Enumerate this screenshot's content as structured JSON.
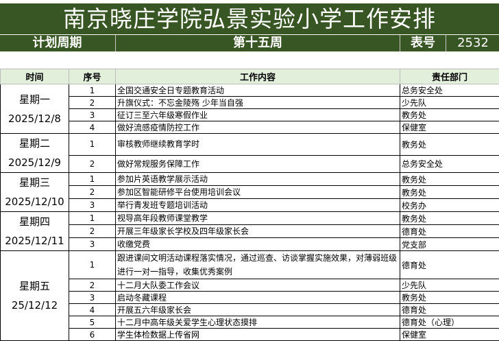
{
  "title": "南京晓庄学院弘景实验小学工作安排",
  "plan_label": "计划周期",
  "week": "第十五周",
  "form_label": "表号",
  "form_number": "2532",
  "headers": [
    "时间",
    "序号",
    "工作内容",
    "责任部门"
  ],
  "days": [
    {
      "day": "星期一",
      "date": "2025/12/8",
      "items": [
        {
          "no": "1",
          "content": "全国交通安全日专题教育活动",
          "dept": "总务安全处"
        },
        {
          "no": "2",
          "content": "升旗仪式：不忘金陵殇 少年当自强",
          "dept": "少先队"
        },
        {
          "no": "3",
          "content": "征订三至六年级寒假作业",
          "dept": "教务处"
        },
        {
          "no": "4",
          "content": "做好流感疫情防控工作",
          "dept": "保健室"
        }
      ]
    },
    {
      "day": "星期二",
      "date": "2025/12/9",
      "items": [
        {
          "no": "1",
          "content": "审核教师继续教育学时",
          "dept": "教务处"
        },
        {
          "no": "2",
          "content": "做好常规服务保障工作",
          "dept": "总务安全处"
        }
      ]
    },
    {
      "day": "星期三",
      "date": "2025/12/10",
      "items": [
        {
          "no": "1",
          "content": "参加片英语教学展示活动",
          "dept": "教务处"
        },
        {
          "no": "2",
          "content": "参加区智能研修平台使用培训会议",
          "dept": "教务处"
        },
        {
          "no": "3",
          "content": "举行青发班专题培训活动",
          "dept": "校务办"
        }
      ]
    },
    {
      "day": "星期四",
      "date": "2025/12/11",
      "items": [
        {
          "no": "1",
          "content": "视导高年段教师课堂教学",
          "dept": "教务处"
        },
        {
          "no": "2",
          "content": "开展三年级家长学校及四年级家长会",
          "dept": "德育处"
        },
        {
          "no": "3",
          "content": "收缴党费",
          "dept": "党支部"
        }
      ]
    },
    {
      "day": "星期五",
      "date": "25/12/12",
      "items": [
        {
          "no": "1",
          "content": "跟进课间文明活动课程落实情况，通过巡查、访谈掌握实施效果，对薄弱班级进行一对一指导，收集优秀案例",
          "dept": "德育处"
        },
        {
          "no": "2",
          "content": "十二月大队委工作会议",
          "dept": "少先队"
        },
        {
          "no": "3",
          "content": "启动冬藏课程",
          "dept": "教务处"
        },
        {
          "no": "4",
          "content": "开展五六年级家长会",
          "dept": "德育处"
        },
        {
          "no": "5",
          "content": "十二月中高年级关爱学生心理状态摸排",
          "dept": "德育处（心理）"
        },
        {
          "no": "6",
          "content": "学生体检数据上传省网",
          "dept": "保健室"
        }
      ]
    }
  ]
}
